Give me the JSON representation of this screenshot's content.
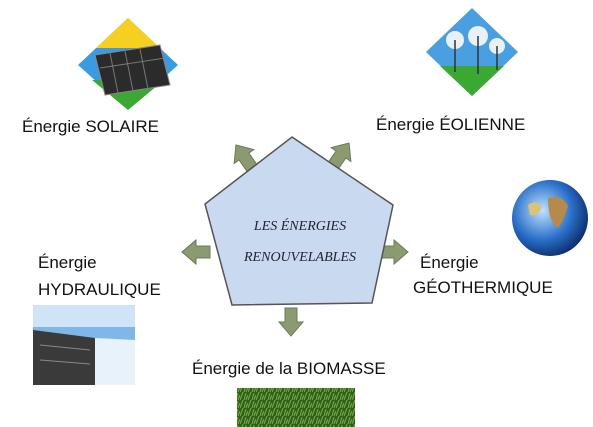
{
  "center": {
    "lines": [
      "LES ÉNERGIES",
      "RENOUVELABLES"
    ]
  },
  "nodes": [
    {
      "lines": [
        "Énergie SOLAIRE"
      ]
    },
    {
      "lines": [
        "Énergie ÉOLIENNE"
      ]
    },
    {
      "lines": [
        "Énergie",
        "HYDRAULIQUE"
      ]
    },
    {
      "lines": [
        "Énergie",
        "GÉOTHERMIQUE"
      ]
    },
    {
      "lines": [
        "Énergie de la BIOMASSE"
      ]
    }
  ]
}
